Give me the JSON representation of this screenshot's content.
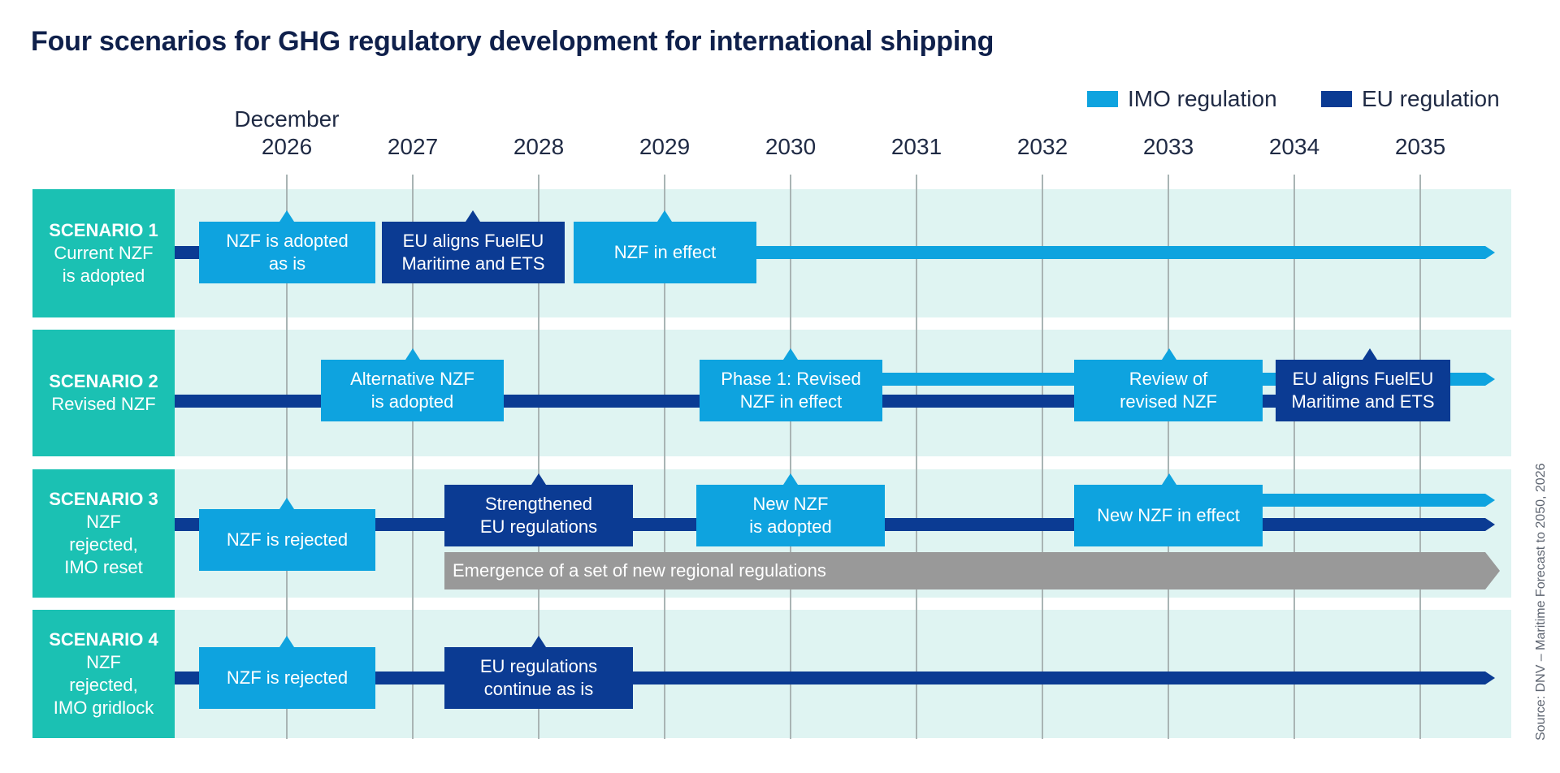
{
  "title": "Four scenarios for GHG regulatory development for international shipping",
  "legend": {
    "imo_label": "IMO regulation",
    "eu_label": "EU regulation"
  },
  "colors": {
    "imo": "#0ea3df",
    "eu": "#0b3b93",
    "band": "#dff4f2",
    "scenario_label": "#1bc1b3",
    "regional": "#999999"
  },
  "timeline": {
    "year_prefix": "December",
    "years": [
      "2026",
      "2027",
      "2028",
      "2029",
      "2030",
      "2031",
      "2032",
      "2033",
      "2034",
      "2035"
    ]
  },
  "scenarios": [
    {
      "name": "SCENARIO 1",
      "description": "Current NZF\nis adopted",
      "events": [
        {
          "text": "NZF is adopted\nas is",
          "type": "imo"
        },
        {
          "text": "EU aligns FuelEU\nMaritime and ETS",
          "type": "eu"
        },
        {
          "text": "NZF in effect",
          "type": "imo"
        }
      ]
    },
    {
      "name": "SCENARIO 2",
      "description": "Revised NZF",
      "events": [
        {
          "text": "Alternative NZF\nis adopted",
          "type": "imo"
        },
        {
          "text": "Phase 1: Revised\nNZF in effect",
          "type": "imo"
        },
        {
          "text": "Review of\nrevised NZF",
          "type": "imo"
        },
        {
          "text": "EU aligns FuelEU\nMaritime and ETS",
          "type": "eu"
        }
      ]
    },
    {
      "name": "SCENARIO 3",
      "description": "NZF\nrejected,\nIMO reset",
      "events": [
        {
          "text": "NZF is rejected",
          "type": "imo"
        },
        {
          "text": "Strengthened\nEU regulations",
          "type": "eu"
        },
        {
          "text": "New NZF\nis adopted",
          "type": "imo"
        },
        {
          "text": "New NZF in effect",
          "type": "imo"
        }
      ],
      "regional": "Emergence of a set of new regional regulations"
    },
    {
      "name": "SCENARIO 4",
      "description": "NZF\nrejected,\nIMO gridlock",
      "events": [
        {
          "text": "NZF is rejected",
          "type": "imo"
        },
        {
          "text": "EU regulations\ncontinue as is",
          "type": "eu"
        }
      ]
    }
  ],
  "source": "Source: DNV – Maritime Forecast to 2050, 2026"
}
